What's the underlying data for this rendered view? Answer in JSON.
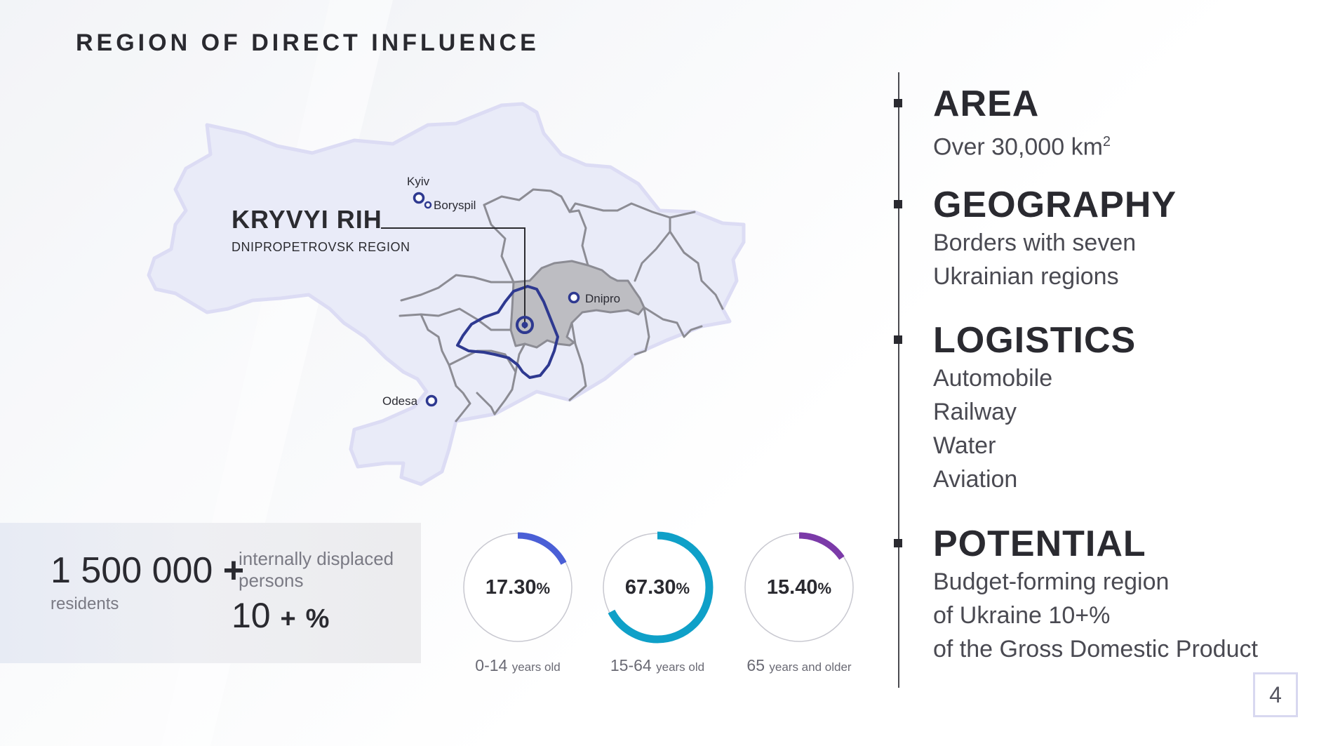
{
  "title": "REGION OF DIRECT INFLUENCE",
  "map": {
    "cities": {
      "kyiv": "Kyiv",
      "boryspil": "Boryspil",
      "dnipro": "Dnipro",
      "odesa": "Odesa"
    },
    "callout": {
      "name": "KRYVYI RIH",
      "region": "DNIPROPETROVSK REGION"
    },
    "colors": {
      "country_fill": "#e9ebf8",
      "country_outline": "#dcdcf4",
      "border_lines": "#8c8c94",
      "region_fill": "#bdbdc2",
      "influence_outline": "#2e3990",
      "city_marker": "#2e3990"
    }
  },
  "residents": {
    "value": "1 500 000",
    "plus": "+",
    "label": "residents",
    "idp_label": "internally displaced persons",
    "idp_value": "10",
    "idp_plus": "+",
    "idp_unit": "%"
  },
  "age_groups": [
    {
      "value": "17.30",
      "unit": "%",
      "percent": 17.3,
      "range": "0-14",
      "suffix": "years old",
      "color": "#4a5fd6"
    },
    {
      "value": "67.30",
      "unit": "%",
      "percent": 67.3,
      "range": "15-64",
      "suffix": "years old",
      "color": "#0fa0c8"
    },
    {
      "value": "15.40",
      "unit": "%",
      "percent": 15.4,
      "range": "65",
      "suffix": "years and older",
      "color": "#7b3aa8"
    }
  ],
  "sections": {
    "area": {
      "heading": "AREA",
      "line1": "Over 30,000 km",
      "sup": "2"
    },
    "geography": {
      "heading": "GEOGRAPHY",
      "line1": "Borders with seven",
      "line2": "Ukrainian regions"
    },
    "logistics": {
      "heading": "LOGISTICS",
      "items": [
        "Automobile",
        "Railway",
        "Water",
        "Aviation"
      ]
    },
    "potential": {
      "heading": "POTENTIAL",
      "line1": "Budget-forming region",
      "line2": "of Ukraine 10+%",
      "line3": "of the Gross Domestic Product"
    }
  },
  "page_number": "4"
}
